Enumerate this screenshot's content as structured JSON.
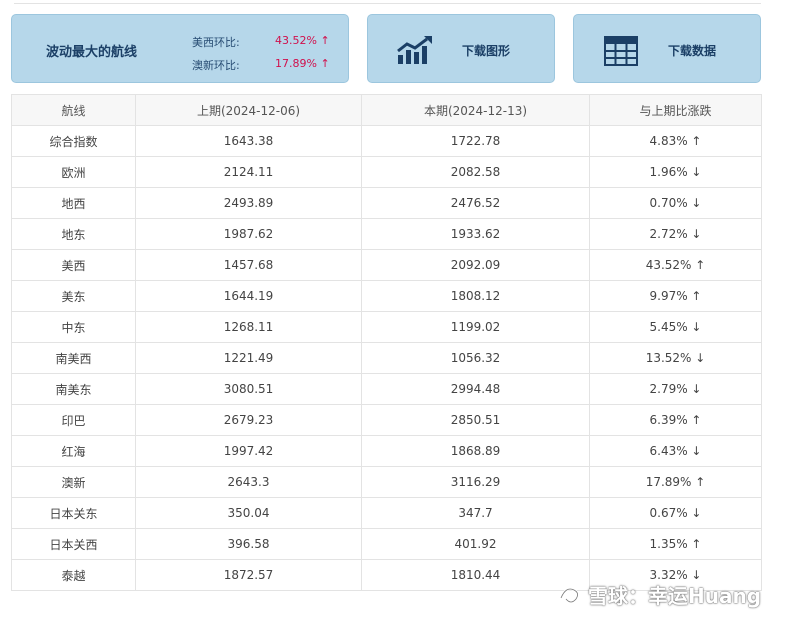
{
  "summary": {
    "title": "波动最大的航线",
    "items": [
      {
        "label": "美西环比:",
        "value": "43.52% ↑"
      },
      {
        "label": "澳新环比:",
        "value": "17.89% ↑"
      }
    ]
  },
  "actions": {
    "download_chart": "下载图形",
    "download_data": "下载数据"
  },
  "table": {
    "headers": [
      "航线",
      "上期(2024-12-06)",
      "本期(2024-12-13)",
      "与上期比涨跌"
    ],
    "rows": [
      {
        "route": "综合指数",
        "prev": "1643.38",
        "curr": "1722.78",
        "change": "4.83% ↑",
        "dir": "up"
      },
      {
        "route": "欧洲",
        "prev": "2124.11",
        "curr": "2082.58",
        "change": "1.96% ↓",
        "dir": "down"
      },
      {
        "route": "地西",
        "prev": "2493.89",
        "curr": "2476.52",
        "change": "0.70% ↓",
        "dir": "down"
      },
      {
        "route": "地东",
        "prev": "1987.62",
        "curr": "1933.62",
        "change": "2.72% ↓",
        "dir": "down"
      },
      {
        "route": "美西",
        "prev": "1457.68",
        "curr": "2092.09",
        "change": "43.52% ↑",
        "dir": "up"
      },
      {
        "route": "美东",
        "prev": "1644.19",
        "curr": "1808.12",
        "change": "9.97% ↑",
        "dir": "up"
      },
      {
        "route": "中东",
        "prev": "1268.11",
        "curr": "1199.02",
        "change": "5.45% ↓",
        "dir": "down"
      },
      {
        "route": "南美西",
        "prev": "1221.49",
        "curr": "1056.32",
        "change": "13.52% ↓",
        "dir": "down"
      },
      {
        "route": "南美东",
        "prev": "3080.51",
        "curr": "2994.48",
        "change": "2.79% ↓",
        "dir": "down"
      },
      {
        "route": "印巴",
        "prev": "2679.23",
        "curr": "2850.51",
        "change": "6.39% ↑",
        "dir": "up"
      },
      {
        "route": "红海",
        "prev": "1997.42",
        "curr": "1868.89",
        "change": "6.43% ↓",
        "dir": "down"
      },
      {
        "route": "澳新",
        "prev": "2643.3",
        "curr": "3116.29",
        "change": "17.89% ↑",
        "dir": "up"
      },
      {
        "route": "日本关东",
        "prev": "350.04",
        "curr": "347.7",
        "change": "0.67% ↓",
        "dir": "down"
      },
      {
        "route": "日本关西",
        "prev": "396.58",
        "curr": "401.92",
        "change": "1.35% ↑",
        "dir": "up"
      },
      {
        "route": "泰越",
        "prev": "1872.57",
        "curr": "1810.44",
        "change": "3.32% ↓",
        "dir": "down"
      }
    ]
  },
  "watermark": "雪球：幸运Huang",
  "colors": {
    "up": "#d0104c",
    "down": "#1a8a8a",
    "card_bg": "#b6d7ea",
    "card_text": "#1b3f66"
  }
}
